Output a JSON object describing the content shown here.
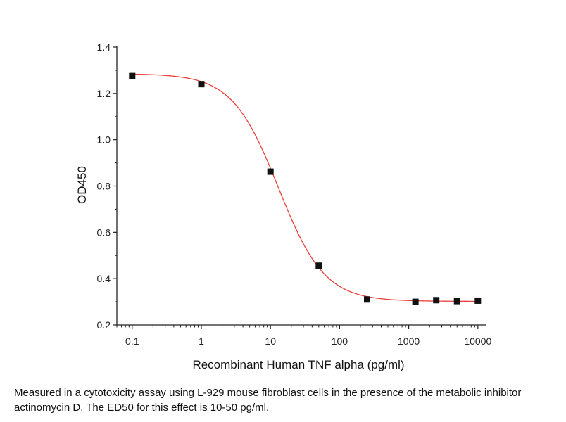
{
  "chart_data": {
    "type": "scatter",
    "title": "",
    "xlabel": "Recombinant Human TNF alpha (pg/ml)",
    "ylabel": "OD450",
    "x_scale": "log",
    "xlim": [
      0.06,
      13000
    ],
    "ylim": [
      0.2,
      1.4
    ],
    "x_ticks": [
      0.1,
      1,
      10,
      100,
      1000,
      10000
    ],
    "x_tick_labels": [
      "0.1",
      "1",
      "10",
      "100",
      "1000",
      "10000"
    ],
    "y_ticks": [
      0.2,
      0.4,
      0.6,
      0.8,
      1.0,
      1.2,
      1.4
    ],
    "y_tick_labels": [
      "0.2",
      "0.4",
      "0.6",
      "0.8",
      "1.0",
      "1.2",
      "1.4"
    ],
    "grid": false,
    "series": [
      {
        "marker": "square",
        "color": "#111111",
        "points": [
          {
            "x": 0.1,
            "y": 1.275
          },
          {
            "x": 1,
            "y": 1.24
          },
          {
            "x": 10,
            "y": 0.862
          },
          {
            "x": 50,
            "y": 0.456
          },
          {
            "x": 250,
            "y": 0.31
          },
          {
            "x": 1250,
            "y": 0.3
          },
          {
            "x": 2500,
            "y": 0.307
          },
          {
            "x": 5000,
            "y": 0.303
          },
          {
            "x": 10000,
            "y": 0.305
          }
        ]
      }
    ],
    "fit_curve": {
      "model": "4PL",
      "color": "#e8403a",
      "top": 1.285,
      "bottom": 0.302,
      "ec50": 13,
      "hill": 1.3,
      "x_range": [
        0.1,
        10000
      ]
    }
  },
  "caption": "Measured in a cytotoxicity assay using L-929 mouse fibroblast cells in the presence of the metabolic inhibitor actinomycin D. The ED50 for this effect is 10-50 pg/ml."
}
